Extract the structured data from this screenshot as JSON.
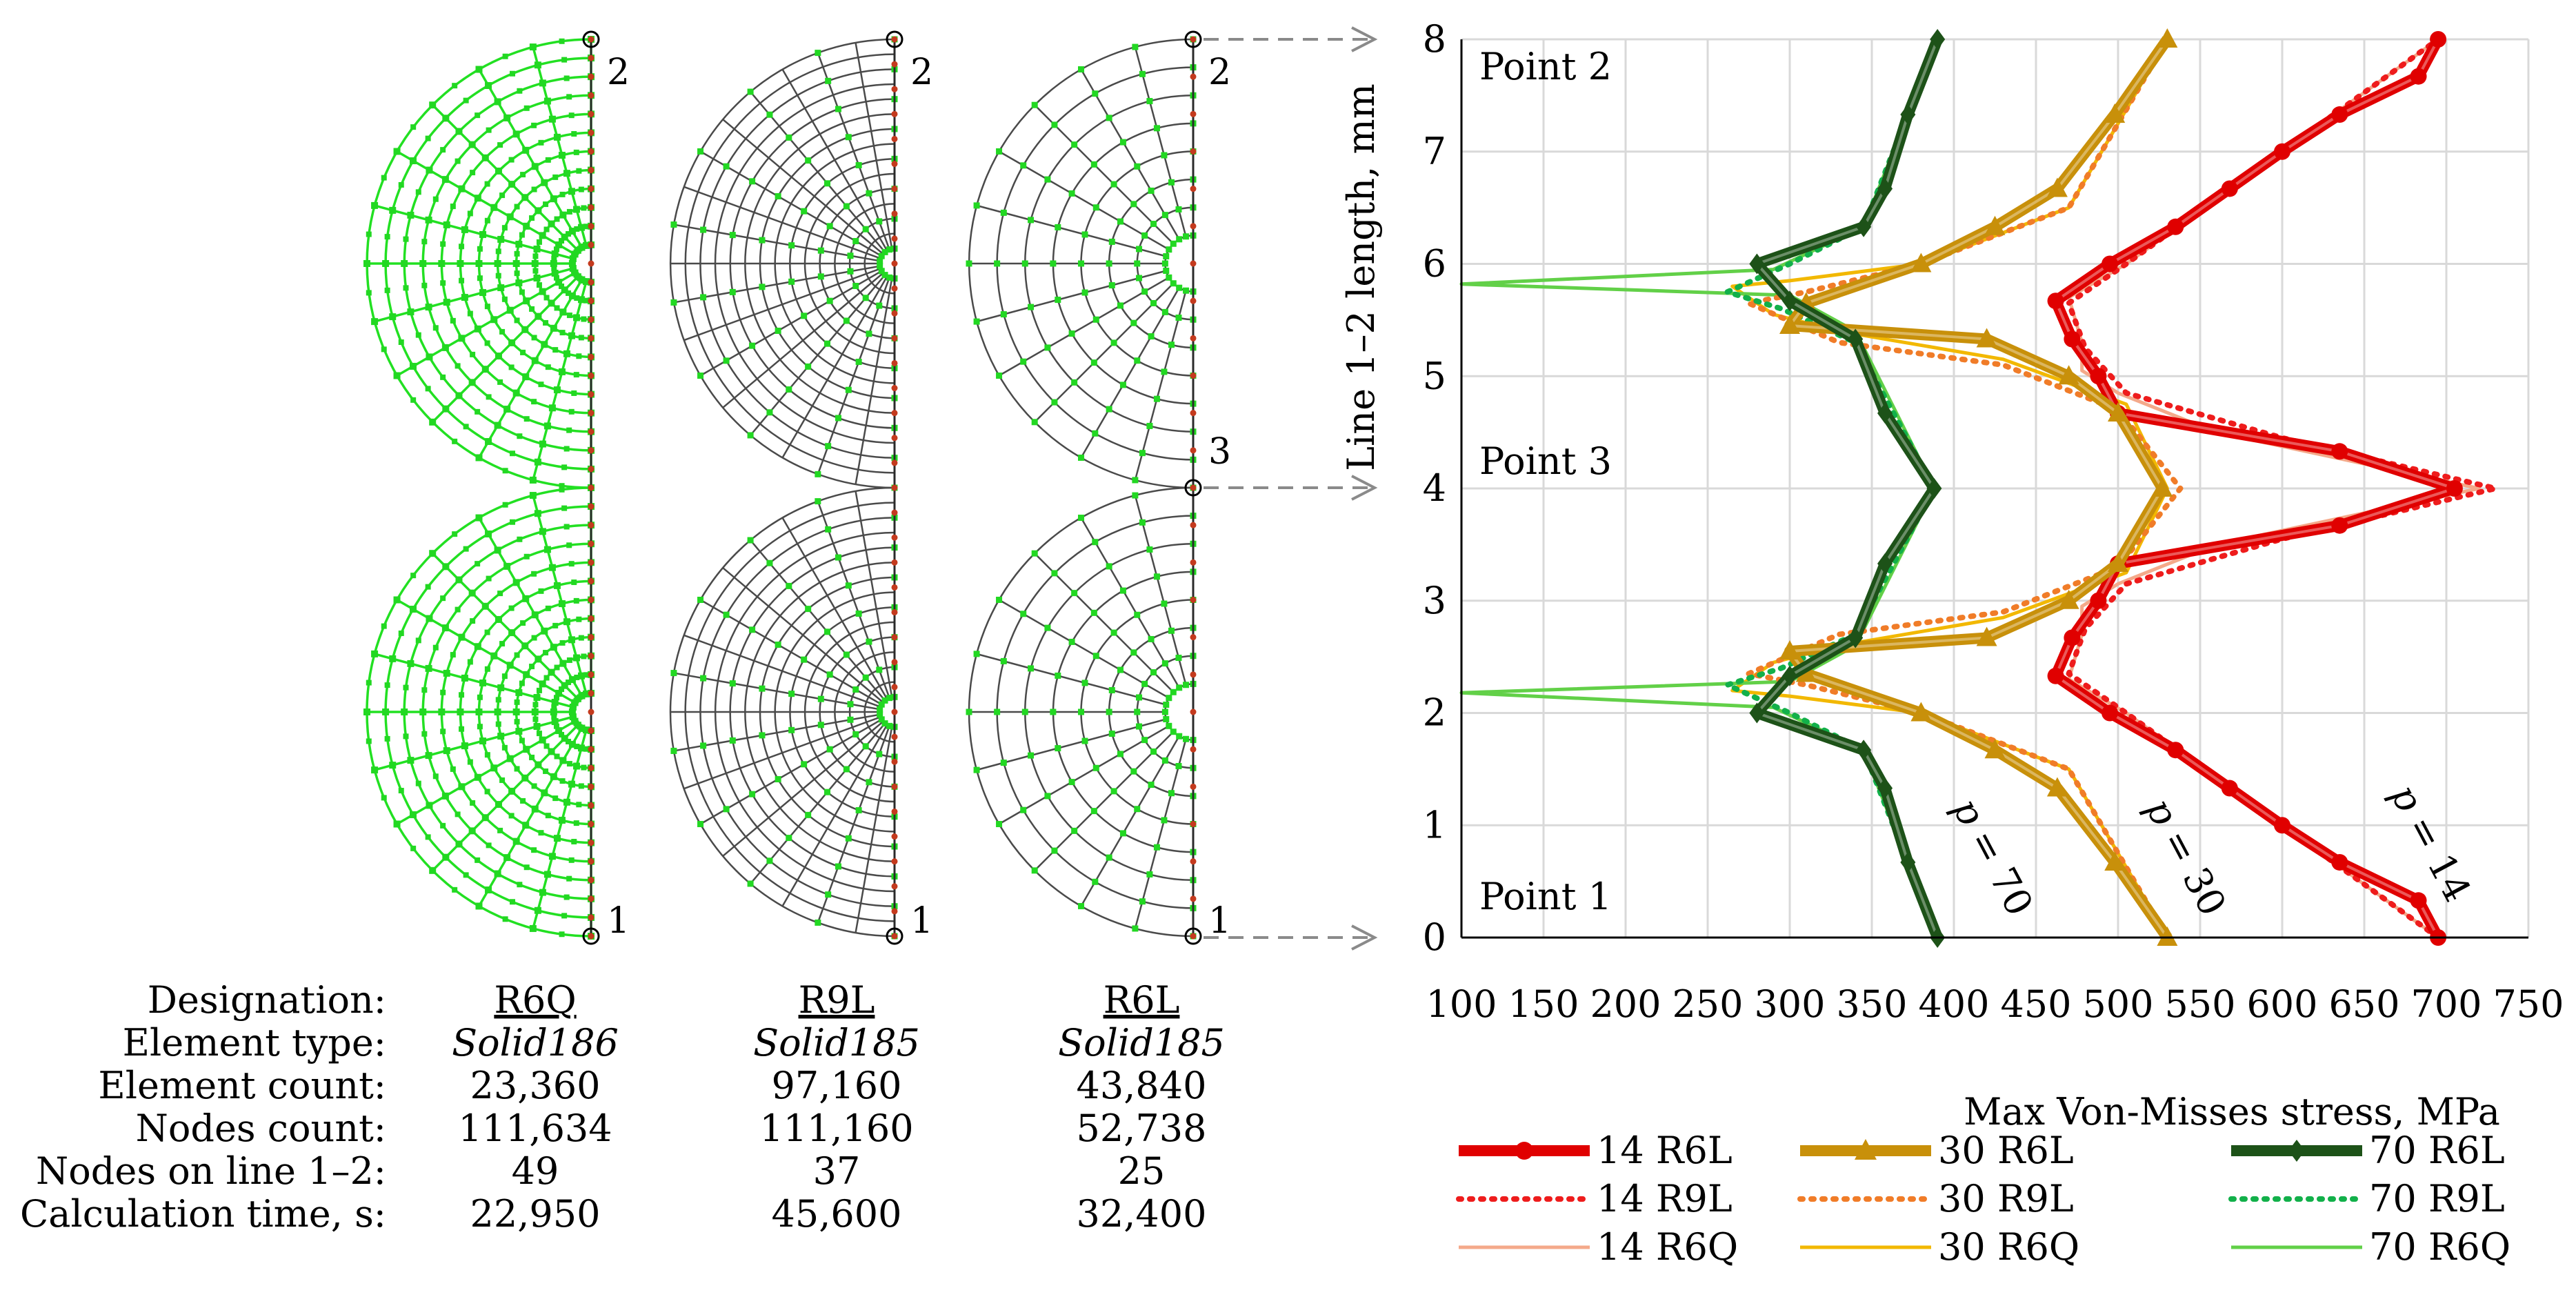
{
  "meshes": {
    "point_labels": {
      "p2": "2",
      "p3": "3",
      "p1": "1"
    },
    "colors": {
      "green_mesh": "#22e022",
      "node": "#22d822",
      "dark_line": "#4a4a4a",
      "red_node": "#c43a1e"
    }
  },
  "table": {
    "row_labels": [
      "Designation:",
      "Element type:",
      "Element count:",
      "Nodes count:",
      "Nodes on line 1–2:",
      "Calculation time, s:"
    ],
    "columns": [
      {
        "designation": "R6Q",
        "element_type": "Solid186",
        "element_count": "23,360",
        "nodes_count": "111,634",
        "nodes_on_line": "49",
        "calc_time": "22,950"
      },
      {
        "designation": "R9L",
        "element_type": "Solid185",
        "element_count": "97,160",
        "nodes_count": "111,160",
        "nodes_on_line": "37",
        "calc_time": "45,600"
      },
      {
        "designation": "R6L",
        "element_type": "Solid185",
        "element_count": "43,840",
        "nodes_count": "52,738",
        "nodes_on_line": "25",
        "calc_time": "32,400"
      }
    ]
  },
  "chart_data": {
    "type": "line",
    "xlabel": "Max Von-Misses stress, MPa",
    "ylabel": "Line 1–2 length, mm",
    "xlim": [
      100,
      750
    ],
    "ylim": [
      0,
      8
    ],
    "xticks": [
      "100",
      "150",
      "200",
      "250",
      "300",
      "350",
      "400",
      "450",
      "500",
      "550",
      "600",
      "650",
      "700",
      "750"
    ],
    "yticks": [
      "0",
      "1",
      "2",
      "3",
      "4",
      "5",
      "6",
      "7",
      "8"
    ],
    "grid": true,
    "annotations": {
      "point2": "Point 2",
      "point3": "Point 3",
      "point1": "Point 1"
    },
    "curve_labels": [
      {
        "p": "p",
        "eq": " = 70",
        "x": 385,
        "y": 0.8
      },
      {
        "p": "p",
        "eq": " = 30",
        "x": 510,
        "y": 0.8
      },
      {
        "p": "p",
        "eq": " = 14",
        "x": 665,
        "y": 0.8
      }
    ],
    "colors": {
      "red": "#e00000",
      "red_dot": "#ee1c1c",
      "red_light": "#f4a98a",
      "gold": "#c8900a",
      "gold_dot": "#f07c28",
      "gold_light": "#f2b800",
      "green": "#1d5218",
      "green_dot": "#12b04a",
      "green_light": "#62d048"
    },
    "series": [
      {
        "name": "14 R6L",
        "style": "R6L",
        "color": "#e00000",
        "points": [
          [
            695,
            0
          ],
          [
            683,
            0.33
          ],
          [
            635,
            0.67
          ],
          [
            600,
            1
          ],
          [
            568,
            1.33
          ],
          [
            535,
            1.67
          ],
          [
            495,
            2
          ],
          [
            462,
            2.33
          ],
          [
            472,
            2.67
          ],
          [
            488,
            3
          ],
          [
            500,
            3.33
          ],
          [
            635,
            3.67
          ],
          [
            705,
            4
          ],
          [
            635,
            4.33
          ],
          [
            500,
            4.67
          ],
          [
            488,
            5
          ],
          [
            472,
            5.33
          ],
          [
            462,
            5.67
          ],
          [
            495,
            6
          ],
          [
            535,
            6.33
          ],
          [
            568,
            6.67
          ],
          [
            600,
            7
          ],
          [
            635,
            7.33
          ],
          [
            683,
            7.67
          ],
          [
            695,
            8
          ]
        ]
      },
      {
        "name": "14 R9L",
        "style": "R9L",
        "color": "#ee1c1c",
        "points": [
          [
            695,
            0
          ],
          [
            600,
            1
          ],
          [
            505,
            2
          ],
          [
            470,
            2.35
          ],
          [
            480,
            2.75
          ],
          [
            505,
            3.15
          ],
          [
            600,
            3.55
          ],
          [
            730,
            4
          ],
          [
            600,
            4.45
          ],
          [
            505,
            4.85
          ],
          [
            480,
            5.25
          ],
          [
            470,
            5.65
          ],
          [
            505,
            6
          ],
          [
            600,
            7
          ],
          [
            695,
            8
          ]
        ]
      },
      {
        "name": "14 R6Q",
        "style": "R6Q",
        "color": "#f4a98a",
        "points": [
          [
            695,
            0
          ],
          [
            600,
            1
          ],
          [
            505,
            2
          ],
          [
            470,
            2.3
          ],
          [
            478,
            2.7
          ],
          [
            478,
            2.95
          ],
          [
            500,
            3.15
          ],
          [
            560,
            3.5
          ],
          [
            720,
            4
          ],
          [
            560,
            4.5
          ],
          [
            500,
            4.85
          ],
          [
            478,
            5.05
          ],
          [
            478,
            5.3
          ],
          [
            470,
            5.7
          ],
          [
            505,
            6
          ],
          [
            600,
            7
          ],
          [
            695,
            8
          ]
        ]
      },
      {
        "name": "30 R6L",
        "style": "R6L",
        "color": "#c8900a",
        "points": [
          [
            530,
            0
          ],
          [
            498,
            0.67
          ],
          [
            463,
            1.33
          ],
          [
            425,
            1.67
          ],
          [
            380,
            2
          ],
          [
            310,
            2.35
          ],
          [
            300,
            2.55
          ],
          [
            420,
            2.67
          ],
          [
            470,
            3
          ],
          [
            500,
            3.33
          ],
          [
            527,
            4
          ],
          [
            500,
            4.67
          ],
          [
            470,
            5
          ],
          [
            420,
            5.33
          ],
          [
            300,
            5.45
          ],
          [
            310,
            5.65
          ],
          [
            380,
            6
          ],
          [
            425,
            6.33
          ],
          [
            463,
            6.67
          ],
          [
            498,
            7.33
          ],
          [
            530,
            8
          ]
        ]
      },
      {
        "name": "30 R9L",
        "style": "R9L",
        "color": "#f07c28",
        "points": [
          [
            530,
            0
          ],
          [
            470,
            1.5
          ],
          [
            380,
            2
          ],
          [
            310,
            2.25
          ],
          [
            275,
            2.35
          ],
          [
            330,
            2.7
          ],
          [
            430,
            2.9
          ],
          [
            500,
            3.3
          ],
          [
            538,
            4
          ],
          [
            500,
            4.7
          ],
          [
            430,
            5.1
          ],
          [
            330,
            5.3
          ],
          [
            275,
            5.65
          ],
          [
            310,
            5.75
          ],
          [
            380,
            6
          ],
          [
            470,
            6.5
          ],
          [
            530,
            8
          ]
        ]
      },
      {
        "name": "30 R6Q",
        "style": "R6Q",
        "color": "#f2b800",
        "points": [
          [
            530,
            0
          ],
          [
            470,
            1.5
          ],
          [
            380,
            2
          ],
          [
            300,
            2.15
          ],
          [
            265,
            2.2
          ],
          [
            290,
            2.45
          ],
          [
            330,
            2.6
          ],
          [
            430,
            2.85
          ],
          [
            505,
            3.25
          ],
          [
            530,
            4
          ],
          [
            505,
            4.75
          ],
          [
            430,
            5.15
          ],
          [
            330,
            5.4
          ],
          [
            290,
            5.55
          ],
          [
            265,
            5.8
          ],
          [
            300,
            5.85
          ],
          [
            380,
            6
          ],
          [
            470,
            6.5
          ],
          [
            530,
            8
          ]
        ]
      },
      {
        "name": "70 R6L",
        "style": "R6L",
        "color": "#1d5218",
        "points": [
          [
            390,
            0
          ],
          [
            372,
            0.67
          ],
          [
            358,
            1.33
          ],
          [
            345,
            1.67
          ],
          [
            280,
            2
          ],
          [
            300,
            2.33
          ],
          [
            340,
            2.67
          ],
          [
            358,
            3.33
          ],
          [
            388,
            4
          ],
          [
            358,
            4.67
          ],
          [
            340,
            5.33
          ],
          [
            300,
            5.67
          ],
          [
            280,
            6
          ],
          [
            345,
            6.33
          ],
          [
            358,
            6.67
          ],
          [
            372,
            7.33
          ],
          [
            390,
            8
          ]
        ]
      },
      {
        "name": "70 R9L",
        "style": "R9L",
        "color": "#12b04a",
        "points": [
          [
            390,
            0
          ],
          [
            345,
            1.67
          ],
          [
            300,
            2.0
          ],
          [
            262,
            2.25
          ],
          [
            295,
            2.4
          ],
          [
            340,
            2.7
          ],
          [
            388,
            4
          ],
          [
            340,
            5.3
          ],
          [
            295,
            5.6
          ],
          [
            262,
            5.75
          ],
          [
            300,
            6.0
          ],
          [
            345,
            6.33
          ],
          [
            390,
            8
          ]
        ]
      },
      {
        "name": "70 R6Q",
        "style": "R6Q",
        "color": "#62d048",
        "points": [
          [
            390,
            0
          ],
          [
            345,
            1.67
          ],
          [
            290,
            2.05
          ],
          [
            100,
            2.18
          ],
          [
            300,
            2.28
          ],
          [
            340,
            2.6
          ],
          [
            388,
            4
          ],
          [
            340,
            5.4
          ],
          [
            300,
            5.72
          ],
          [
            100,
            5.82
          ],
          [
            290,
            5.95
          ],
          [
            345,
            6.33
          ],
          [
            390,
            8
          ]
        ]
      }
    ],
    "legend": [
      {
        "label": "14 R6L",
        "series": 0
      },
      {
        "label": "30 R6L",
        "series": 3
      },
      {
        "label": "70 R6L",
        "series": 6
      },
      {
        "label": "14 R9L",
        "series": 1
      },
      {
        "label": "30 R9L",
        "series": 4
      },
      {
        "label": "70 R9L",
        "series": 7
      },
      {
        "label": "14 R6Q",
        "series": 2
      },
      {
        "label": "30 R6Q",
        "series": 5
      },
      {
        "label": "70 R6Q",
        "series": 8
      }
    ]
  }
}
